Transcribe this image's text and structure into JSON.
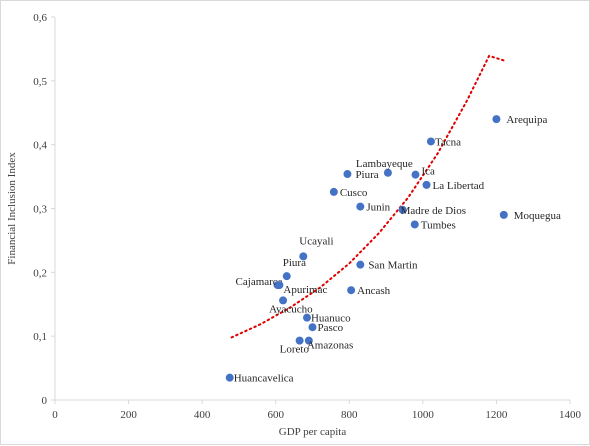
{
  "chart_data": {
    "type": "scatter",
    "title": "",
    "xlabel": "GDP per capita",
    "ylabel": "Financial Inclusion Index",
    "xlim": [
      0,
      1400
    ],
    "ylim": [
      0,
      0.6
    ],
    "xticks": [
      "0",
      "200",
      "400",
      "600",
      "800",
      "1000",
      "1200",
      "1400"
    ],
    "yticks": [
      "0",
      "0,1",
      "0,2",
      "0,3",
      "0,4",
      "0,5",
      "0,6"
    ],
    "grid": false,
    "legend": "none",
    "marker_color": "#4472c4",
    "trend_color": "#e00000",
    "trendline": {
      "style": "dotted",
      "x": [
        480,
        560,
        640,
        720,
        800,
        880,
        960,
        1040,
        1120,
        1180,
        1220
      ],
      "y": [
        0.098,
        0.119,
        0.145,
        0.176,
        0.214,
        0.261,
        0.317,
        0.386,
        0.469,
        0.539,
        0.532
      ]
    },
    "points": [
      {
        "label": "Arequipa",
        "x": 1200,
        "y": 0.44
      },
      {
        "label": "Tacna",
        "x": 1022,
        "y": 0.405
      },
      {
        "label": "Lambayeque",
        "x": 905,
        "y": 0.356
      },
      {
        "label": "Ica",
        "x": 980,
        "y": 0.353
      },
      {
        "label": "Piura",
        "x": 795,
        "y": 0.354
      },
      {
        "label": "La Libertad",
        "x": 1010,
        "y": 0.337
      },
      {
        "label": "Cusco",
        "x": 758,
        "y": 0.326
      },
      {
        "label": "Junin",
        "x": 830,
        "y": 0.303
      },
      {
        "label": "Madre de Dios",
        "x": 945,
        "y": 0.298
      },
      {
        "label": "Moquegua",
        "x": 1220,
        "y": 0.29
      },
      {
        "label": "Tumbes",
        "x": 978,
        "y": 0.275
      },
      {
        "label": "Ucayali",
        "x": 675,
        "y": 0.225
      },
      {
        "label": "San Martin",
        "x": 830,
        "y": 0.212
      },
      {
        "label": "Piura",
        "x": 630,
        "y": 0.194
      },
      {
        "label": "Cajamarca",
        "x": 605,
        "y": 0.18
      },
      {
        "label": "Apurimac",
        "x": 610,
        "y": 0.18
      },
      {
        "label": "Ancash",
        "x": 805,
        "y": 0.172
      },
      {
        "label": "Ayacucho",
        "x": 620,
        "y": 0.156
      },
      {
        "label": "Huanuco",
        "x": 685,
        "y": 0.129
      },
      {
        "label": "Pasco",
        "x": 700,
        "y": 0.114
      },
      {
        "label": "Loreto",
        "x": 665,
        "y": 0.093
      },
      {
        "label": "Amazonas",
        "x": 690,
        "y": 0.093
      },
      {
        "label": "Huancavelica",
        "x": 475,
        "y": 0.035
      }
    ]
  }
}
